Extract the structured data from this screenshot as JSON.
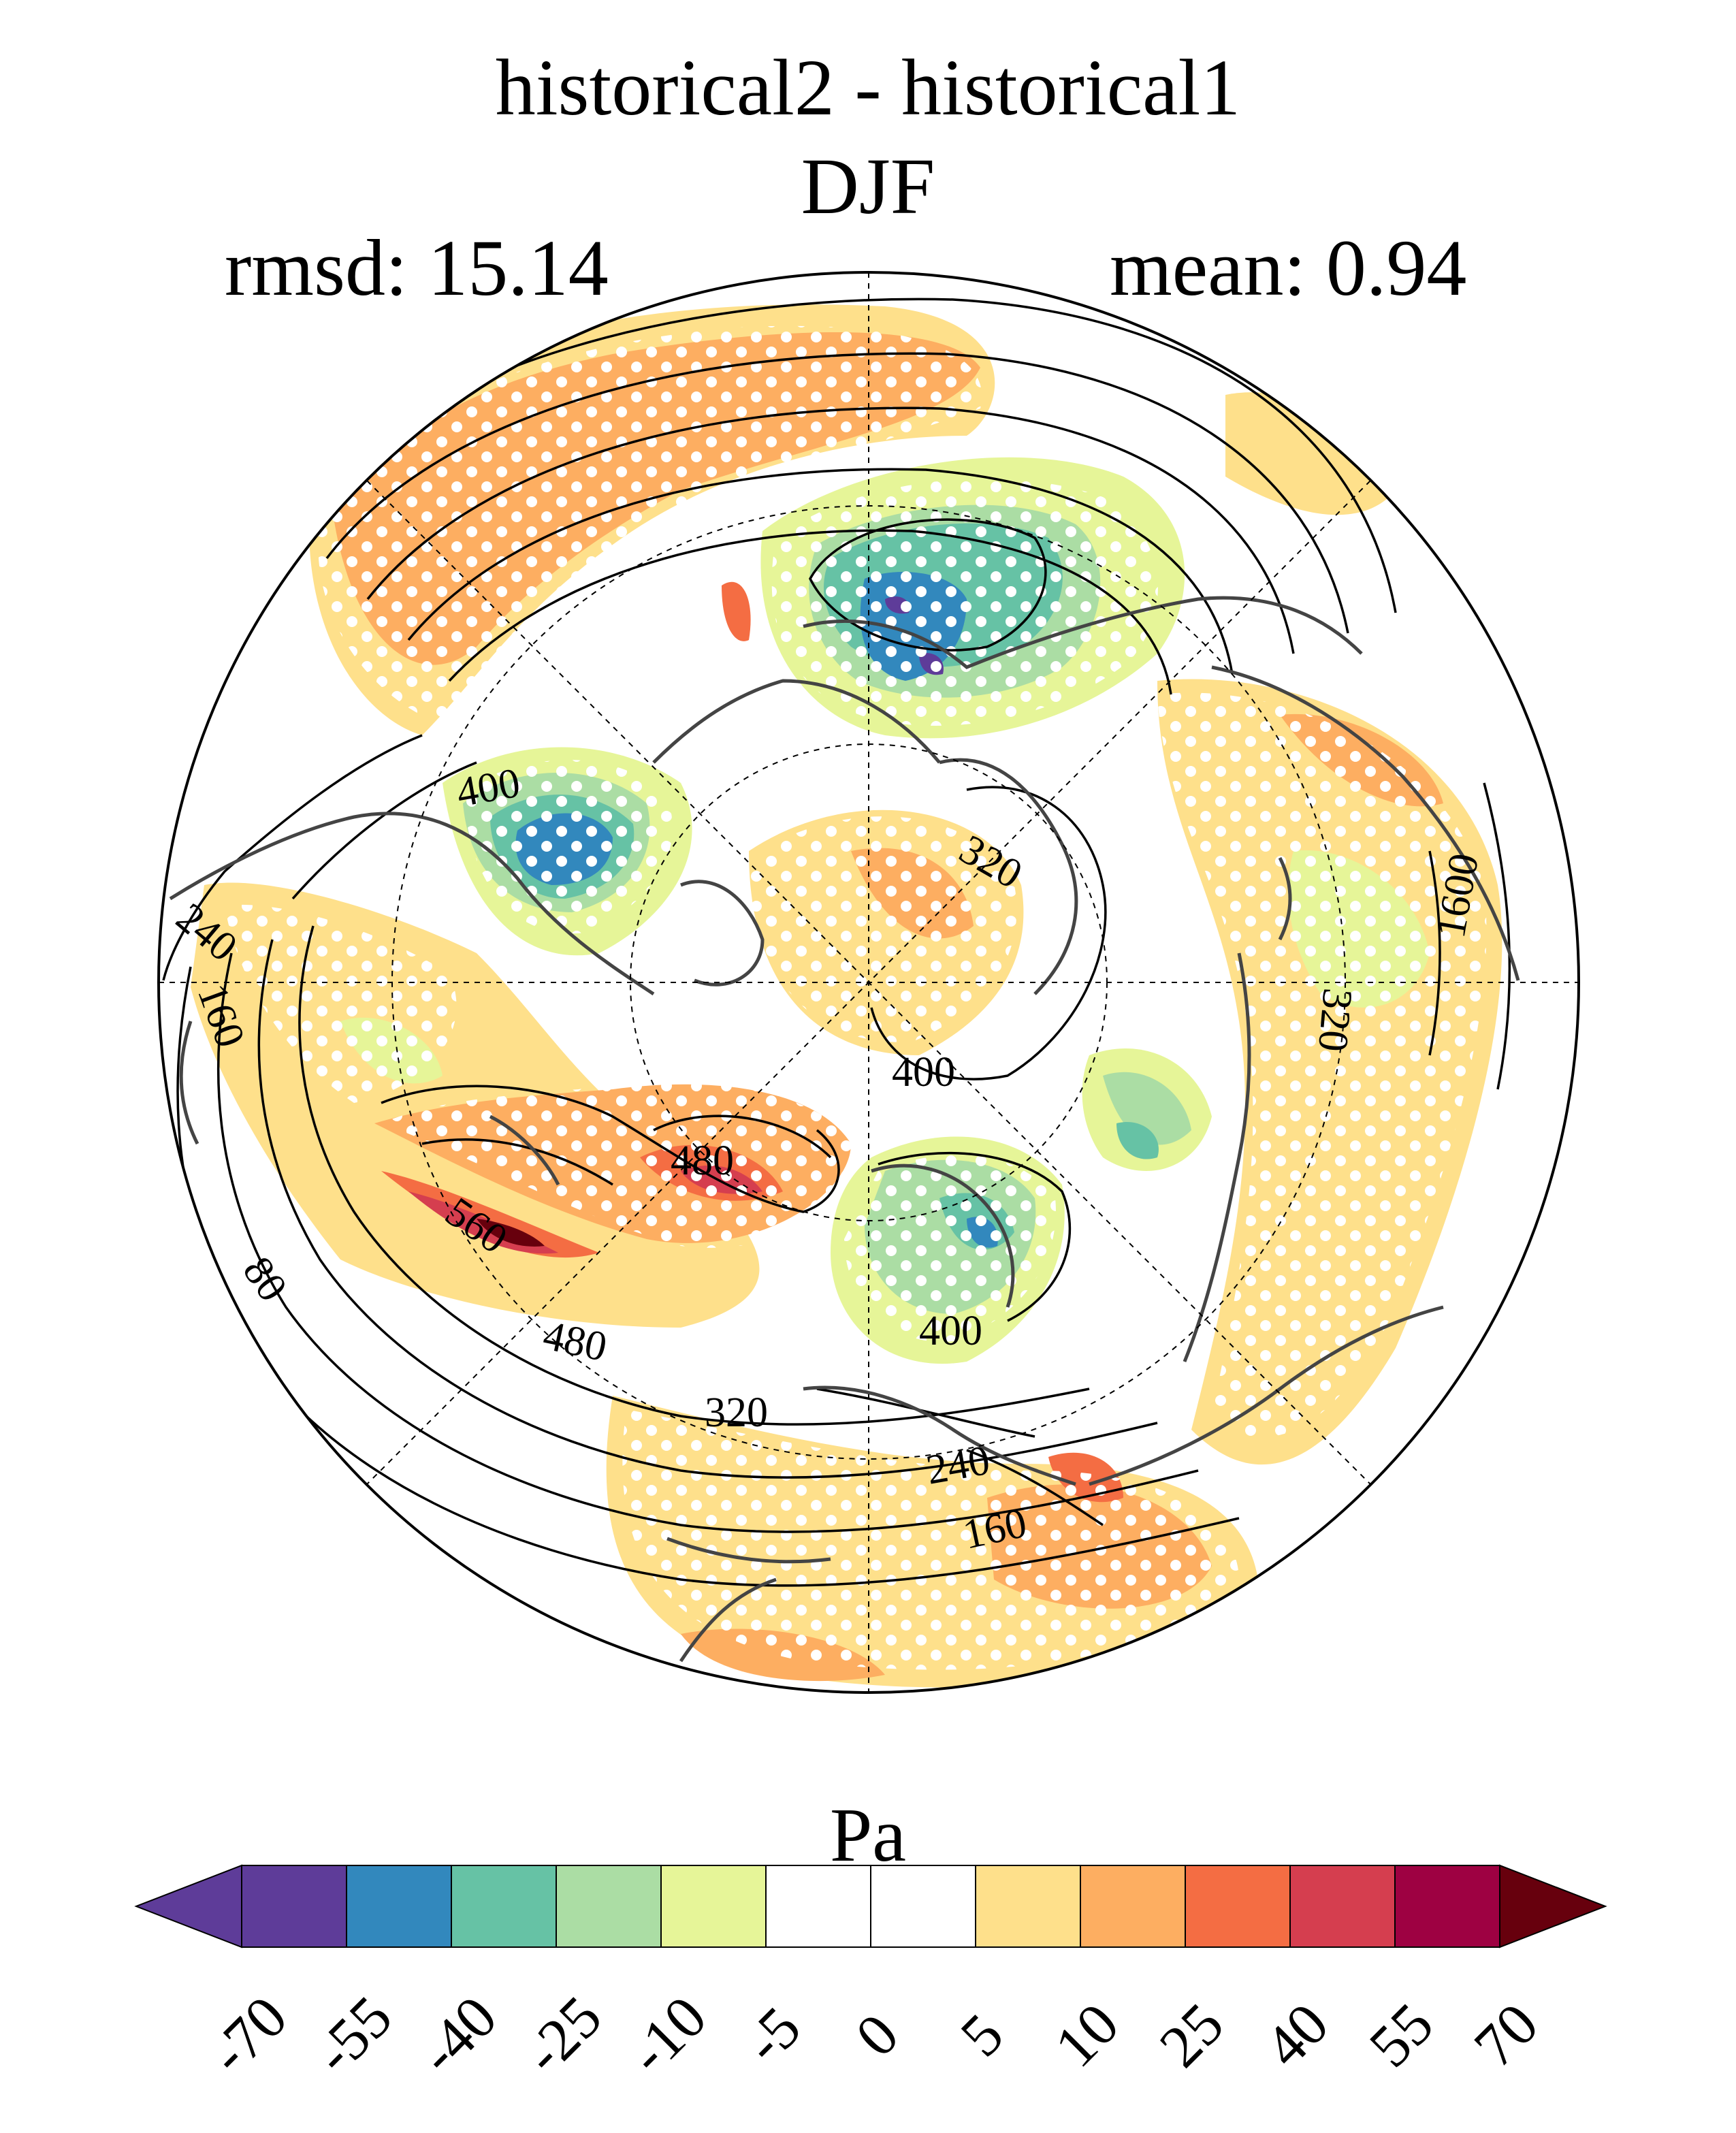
{
  "header": {
    "title": "historical2 - historical1",
    "season": "DJF",
    "rmsd_label": "rmsd: 15.14",
    "mean_label": "mean: 0.94"
  },
  "map": {
    "projection": "north-polar-stereographic",
    "fill_variable_units": "Pa",
    "stippling": "white dots mark significant differences",
    "contour_labels": [
      "400",
      "320",
      "1600",
      "240",
      "160",
      "80",
      "400",
      "480",
      "560",
      "480",
      "320",
      "400",
      "240",
      "160",
      "320"
    ]
  },
  "colorbar": {
    "unit": "Pa",
    "tick_labels": [
      "-70",
      "-55",
      "-40",
      "-25",
      "-10",
      "-5",
      "0",
      "5",
      "10",
      "25",
      "40",
      "55",
      "70"
    ],
    "colors": [
      "#5e3c99",
      "#3288bd",
      "#66c2a5",
      "#abdda4",
      "#e6f598",
      "#ffffff",
      "#ffffff",
      "#fee08b",
      "#fdae61",
      "#f46d43",
      "#d53e4f",
      "#9e0142"
    ],
    "under_color": "#5e3c99",
    "over_color": "#67000d"
  }
}
